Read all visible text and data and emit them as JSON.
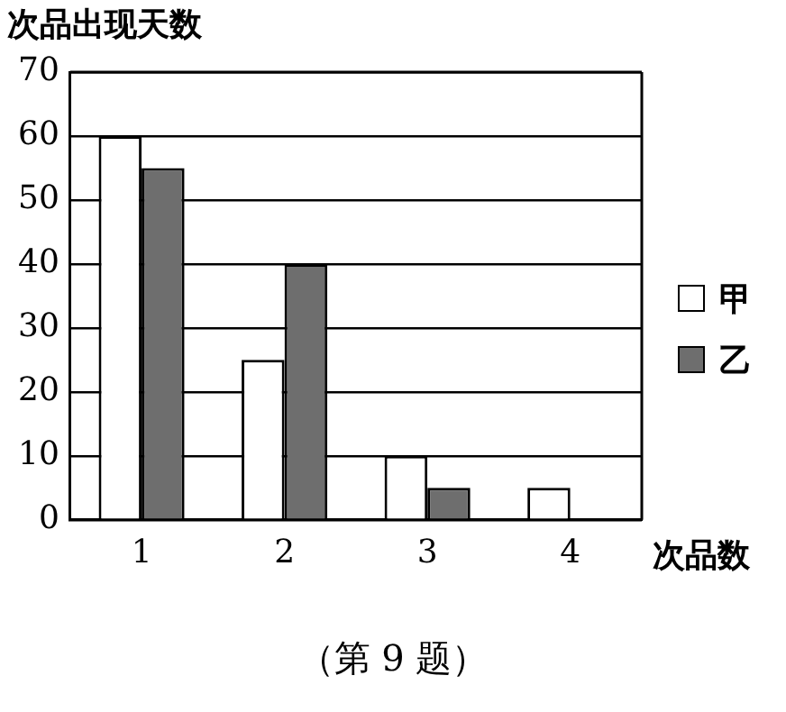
{
  "chart_data": {
    "type": "bar",
    "ylabel": "次品出现天数",
    "xlabel": "次品数",
    "annotations": [
      "（第 9 题）"
    ],
    "categories": [
      "1",
      "2",
      "3",
      "4"
    ],
    "series": [
      {
        "name": "甲",
        "color": "#ffffff",
        "values": [
          60,
          25,
          10,
          5
        ]
      },
      {
        "name": "乙",
        "color": "#6e6e6e",
        "values": [
          55,
          40,
          5,
          0
        ]
      }
    ],
    "ylim": [
      0,
      70
    ],
    "yticks": [
      0,
      10,
      20,
      30,
      40,
      50,
      60,
      70
    ],
    "grid": "y",
    "legend": "right"
  }
}
